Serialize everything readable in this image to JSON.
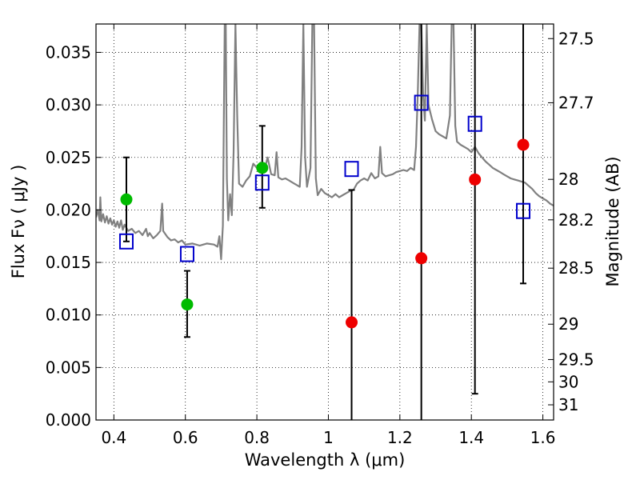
{
  "chart_data": {
    "type": "scatter",
    "xlabel": "Wavelength  λ (μm)",
    "ylabel": "Flux  Fν  ( μJy )",
    "ylabel_right": "Magnitude (AB)",
    "xlim": [
      0.35,
      1.63
    ],
    "ylim": [
      0.0,
      0.0377
    ],
    "grid": true,
    "x_ticks": [
      {
        "value": 0.4,
        "label": "0.4"
      },
      {
        "value": 0.6,
        "label": "0.6"
      },
      {
        "value": 0.8,
        "label": "0.8"
      },
      {
        "value": 1.0,
        "label": "1"
      },
      {
        "value": 1.2,
        "label": "1.2"
      },
      {
        "value": 1.4,
        "label": "1.4"
      },
      {
        "value": 1.6,
        "label": "1.6"
      }
    ],
    "y_ticks": [
      {
        "value": 0.0,
        "label": "0.000"
      },
      {
        "value": 0.005,
        "label": "0.005"
      },
      {
        "value": 0.01,
        "label": "0.010"
      },
      {
        "value": 0.015,
        "label": "0.015"
      },
      {
        "value": 0.02,
        "label": "0.020"
      },
      {
        "value": 0.025,
        "label": "0.025"
      },
      {
        "value": 0.03,
        "label": "0.030"
      },
      {
        "value": 0.035,
        "label": "0.035"
      }
    ],
    "y_ticks_right": [
      {
        "value": 27.5,
        "label": "27.5"
      },
      {
        "value": 27.7,
        "label": "27.7"
      },
      {
        "value": 28.0,
        "label": "28"
      },
      {
        "value": 28.2,
        "label": "28.2"
      },
      {
        "value": 28.5,
        "label": "28.5"
      },
      {
        "value": 29.0,
        "label": "29"
      },
      {
        "value": 29.5,
        "label": "29.5"
      },
      {
        "value": 30.0,
        "label": "30"
      },
      {
        "value": 31.0,
        "label": "31"
      }
    ],
    "series": [
      {
        "name": "model spectrum",
        "kind": "line",
        "color": "#808080",
        "points": [
          [
            0.35,
            0.0193
          ],
          [
            0.355,
            0.02
          ],
          [
            0.36,
            0.019
          ],
          [
            0.362,
            0.0212
          ],
          [
            0.365,
            0.0189
          ],
          [
            0.37,
            0.0196
          ],
          [
            0.375,
            0.0188
          ],
          [
            0.38,
            0.0194
          ],
          [
            0.385,
            0.0187
          ],
          [
            0.39,
            0.0192
          ],
          [
            0.395,
            0.0186
          ],
          [
            0.4,
            0.019
          ],
          [
            0.405,
            0.0184
          ],
          [
            0.41,
            0.0189
          ],
          [
            0.415,
            0.0183
          ],
          [
            0.42,
            0.019
          ],
          [
            0.425,
            0.0181
          ],
          [
            0.43,
            0.0186
          ],
          [
            0.44,
            0.018
          ],
          [
            0.45,
            0.0182
          ],
          [
            0.46,
            0.0178
          ],
          [
            0.47,
            0.018
          ],
          [
            0.48,
            0.0176
          ],
          [
            0.49,
            0.0182
          ],
          [
            0.495,
            0.0175
          ],
          [
            0.5,
            0.0178
          ],
          [
            0.51,
            0.0173
          ],
          [
            0.52,
            0.0176
          ],
          [
            0.53,
            0.018
          ],
          [
            0.535,
            0.0206
          ],
          [
            0.538,
            0.018
          ],
          [
            0.55,
            0.0174
          ],
          [
            0.56,
            0.0171
          ],
          [
            0.57,
            0.0172
          ],
          [
            0.58,
            0.0169
          ],
          [
            0.59,
            0.0171
          ],
          [
            0.6,
            0.0167
          ],
          [
            0.62,
            0.0168
          ],
          [
            0.64,
            0.0166
          ],
          [
            0.66,
            0.0168
          ],
          [
            0.68,
            0.0167
          ],
          [
            0.69,
            0.0165
          ],
          [
            0.695,
            0.0175
          ],
          [
            0.7,
            0.0153
          ],
          [
            0.705,
            0.0185
          ],
          [
            0.71,
            0.0377
          ],
          [
            0.713,
            0.0377
          ],
          [
            0.716,
            0.023
          ],
          [
            0.72,
            0.019
          ],
          [
            0.725,
            0.0215
          ],
          [
            0.73,
            0.0195
          ],
          [
            0.735,
            0.0255
          ],
          [
            0.74,
            0.0377
          ],
          [
            0.745,
            0.029
          ],
          [
            0.75,
            0.0225
          ],
          [
            0.76,
            0.0222
          ],
          [
            0.77,
            0.0228
          ],
          [
            0.78,
            0.0232
          ],
          [
            0.79,
            0.0244
          ],
          [
            0.8,
            0.024
          ],
          [
            0.81,
            0.0245
          ],
          [
            0.82,
            0.0236
          ],
          [
            0.83,
            0.025
          ],
          [
            0.84,
            0.0234
          ],
          [
            0.85,
            0.0233
          ],
          [
            0.855,
            0.0255
          ],
          [
            0.86,
            0.0231
          ],
          [
            0.87,
            0.0229
          ],
          [
            0.88,
            0.023
          ],
          [
            0.89,
            0.0228
          ],
          [
            0.9,
            0.0226
          ],
          [
            0.91,
            0.0224
          ],
          [
            0.92,
            0.0222
          ],
          [
            0.925,
            0.026
          ],
          [
            0.93,
            0.0377
          ],
          [
            0.935,
            0.025
          ],
          [
            0.94,
            0.0222
          ],
          [
            0.95,
            0.024
          ],
          [
            0.955,
            0.0377
          ],
          [
            0.96,
            0.0377
          ],
          [
            0.965,
            0.023
          ],
          [
            0.97,
            0.0214
          ],
          [
            0.98,
            0.022
          ],
          [
            0.99,
            0.0216
          ],
          [
            1.0,
            0.0214
          ],
          [
            1.01,
            0.0212
          ],
          [
            1.02,
            0.0215
          ],
          [
            1.03,
            0.0212
          ],
          [
            1.04,
            0.0214
          ],
          [
            1.05,
            0.0216
          ],
          [
            1.06,
            0.0218
          ],
          [
            1.07,
            0.0219
          ],
          [
            1.08,
            0.0225
          ],
          [
            1.09,
            0.0228
          ],
          [
            1.1,
            0.023
          ],
          [
            1.11,
            0.0228
          ],
          [
            1.12,
            0.0235
          ],
          [
            1.13,
            0.023
          ],
          [
            1.14,
            0.0232
          ],
          [
            1.145,
            0.026
          ],
          [
            1.15,
            0.0235
          ],
          [
            1.16,
            0.0232
          ],
          [
            1.17,
            0.0233
          ],
          [
            1.18,
            0.0234
          ],
          [
            1.19,
            0.0236
          ],
          [
            1.2,
            0.0237
          ],
          [
            1.21,
            0.0238
          ],
          [
            1.22,
            0.0237
          ],
          [
            1.23,
            0.024
          ],
          [
            1.24,
            0.0238
          ],
          [
            1.245,
            0.026
          ],
          [
            1.25,
            0.031
          ],
          [
            1.255,
            0.0377
          ],
          [
            1.26,
            0.0377
          ],
          [
            1.265,
            0.031
          ],
          [
            1.27,
            0.0285
          ],
          [
            1.275,
            0.0377
          ],
          [
            1.28,
            0.03
          ],
          [
            1.29,
            0.0286
          ],
          [
            1.3,
            0.0275
          ],
          [
            1.31,
            0.0272
          ],
          [
            1.32,
            0.027
          ],
          [
            1.33,
            0.0268
          ],
          [
            1.34,
            0.029
          ],
          [
            1.345,
            0.0377
          ],
          [
            1.35,
            0.0377
          ],
          [
            1.355,
            0.028
          ],
          [
            1.36,
            0.0265
          ],
          [
            1.37,
            0.0262
          ],
          [
            1.38,
            0.026
          ],
          [
            1.39,
            0.0258
          ],
          [
            1.4,
            0.0255
          ],
          [
            1.41,
            0.026
          ],
          [
            1.42,
            0.0254
          ],
          [
            1.43,
            0.025
          ],
          [
            1.44,
            0.0246
          ],
          [
            1.45,
            0.0243
          ],
          [
            1.46,
            0.024
          ],
          [
            1.47,
            0.0238
          ],
          [
            1.48,
            0.0236
          ],
          [
            1.49,
            0.0234
          ],
          [
            1.5,
            0.0232
          ],
          [
            1.51,
            0.023
          ],
          [
            1.52,
            0.0229
          ],
          [
            1.53,
            0.0228
          ],
          [
            1.54,
            0.0227
          ],
          [
            1.55,
            0.0226
          ],
          [
            1.56,
            0.0223
          ],
          [
            1.57,
            0.022
          ],
          [
            1.58,
            0.0216
          ],
          [
            1.59,
            0.0213
          ],
          [
            1.6,
            0.0211
          ],
          [
            1.61,
            0.0209
          ],
          [
            1.62,
            0.0206
          ],
          [
            1.63,
            0.0204
          ]
        ]
      },
      {
        "name": "model photometry",
        "kind": "open-square",
        "color": "#0000cc",
        "points": [
          [
            0.435,
            0.017
          ],
          [
            0.605,
            0.0158
          ],
          [
            0.815,
            0.0226
          ],
          [
            1.065,
            0.0239
          ],
          [
            1.26,
            0.0302
          ],
          [
            1.41,
            0.0282
          ],
          [
            1.545,
            0.0199
          ]
        ]
      },
      {
        "name": "detections",
        "kind": "filled-circle",
        "color": "#00bb00",
        "points": [
          [
            0.435,
            0.021
          ],
          [
            0.605,
            0.011
          ],
          [
            0.815,
            0.024
          ]
        ]
      },
      {
        "name": "upper limits",
        "kind": "filled-circle",
        "color": "#ee0000",
        "points": [
          [
            1.065,
            0.0093
          ],
          [
            1.26,
            0.0154
          ],
          [
            1.41,
            0.0229
          ],
          [
            1.545,
            0.0262
          ]
        ]
      }
    ],
    "errorbars": [
      {
        "x": 0.435,
        "low": 0.017,
        "high": 0.025
      },
      {
        "x": 0.605,
        "low": 0.0079,
        "high": 0.0142
      },
      {
        "x": 0.815,
        "low": 0.0202,
        "high": 0.028
      },
      {
        "x": 1.065,
        "low": 0.0,
        "high": 0.0219
      },
      {
        "x": 1.26,
        "low": 0.0,
        "high": 0.0377
      },
      {
        "x": 1.41,
        "low": 0.0025,
        "high": 0.0377
      },
      {
        "x": 1.545,
        "low": 0.013,
        "high": 0.0377
      }
    ]
  }
}
